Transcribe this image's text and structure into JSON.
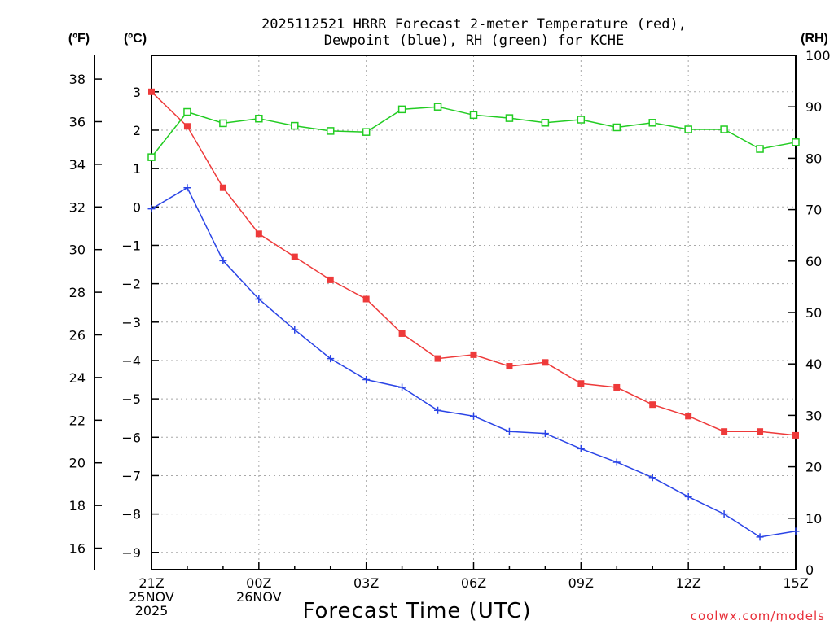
{
  "chart_data": {
    "type": "line",
    "title": "2025112521 HRRR Forecast 2-meter Temperature (red),",
    "title_line2": "Dewpoint (blue), RH (green) for KCHE",
    "xlabel": "Forecast Time (UTC)",
    "credit": "coolwx.com/models",
    "units": {
      "fahrenheit": "(ºF)",
      "celsius": "(ºC)",
      "rh": "(RH)"
    },
    "x_hours": [
      0,
      1,
      2,
      3,
      4,
      5,
      6,
      7,
      8,
      9,
      10,
      11,
      12,
      13,
      14,
      15,
      16,
      17,
      18
    ],
    "xlim": [
      0,
      18
    ],
    "x_ticks": [
      {
        "hour": 0,
        "lines": [
          "21Z",
          "25NOV",
          "2025"
        ]
      },
      {
        "hour": 3,
        "lines": [
          "00Z",
          "26NOV"
        ]
      },
      {
        "hour": 6,
        "lines": [
          "03Z"
        ]
      },
      {
        "hour": 9,
        "lines": [
          "06Z"
        ]
      },
      {
        "hour": 12,
        "lines": [
          "09Z"
        ]
      },
      {
        "hour": 15,
        "lines": [
          "12Z"
        ]
      },
      {
        "hour": 18,
        "lines": [
          "15Z"
        ]
      }
    ],
    "ylim_celsius": [
      -9.45,
      3.95
    ],
    "y_ticks_celsius": [
      3,
      2,
      1,
      0,
      -1,
      -2,
      -3,
      -4,
      -5,
      -6,
      -7,
      -8,
      -9
    ],
    "y_ticks_celsius_labels": [
      "3",
      "2",
      "1",
      "0",
      "−1",
      "−2",
      "−3",
      "−4",
      "−5",
      "−6",
      "−7",
      "−8",
      "−9"
    ],
    "y_ticks_fahrenheit": [
      38,
      36,
      34,
      32,
      30,
      28,
      26,
      24,
      22,
      20,
      18,
      16
    ],
    "ylim_rh": [
      0,
      100
    ],
    "y_ticks_rh": [
      100,
      90,
      80,
      70,
      60,
      50,
      40,
      30,
      20,
      10,
      0
    ],
    "series": [
      {
        "name": "Temperature",
        "axis": "celsius",
        "color": "#ee3a3a",
        "marker": "filled-square",
        "values": [
          3.0,
          2.1,
          0.5,
          -0.7,
          -1.3,
          -1.9,
          -2.4,
          -3.3,
          -3.95,
          -3.85,
          -4.15,
          -4.05,
          -4.6,
          -4.7,
          -5.15,
          -5.45,
          -5.85,
          -5.85,
          -5.95
        ]
      },
      {
        "name": "Dewpoint",
        "axis": "celsius",
        "color": "#2a44e6",
        "marker": "plus",
        "values": [
          -0.05,
          0.5,
          -1.4,
          -2.4,
          -3.2,
          -3.95,
          -4.5,
          -4.7,
          -5.3,
          -5.45,
          -5.85,
          -5.9,
          -6.3,
          -6.65,
          -7.05,
          -7.55,
          -8.0,
          -8.6,
          -8.45
        ]
      },
      {
        "name": "RH",
        "axis": "rh",
        "color": "#22cc22",
        "marker": "open-square",
        "values": [
          80.2,
          89.0,
          86.8,
          87.7,
          86.3,
          85.3,
          85.1,
          89.5,
          90.0,
          88.4,
          87.8,
          86.9,
          87.5,
          86.0,
          86.9,
          85.6,
          85.6,
          81.8,
          83.1
        ]
      }
    ]
  }
}
